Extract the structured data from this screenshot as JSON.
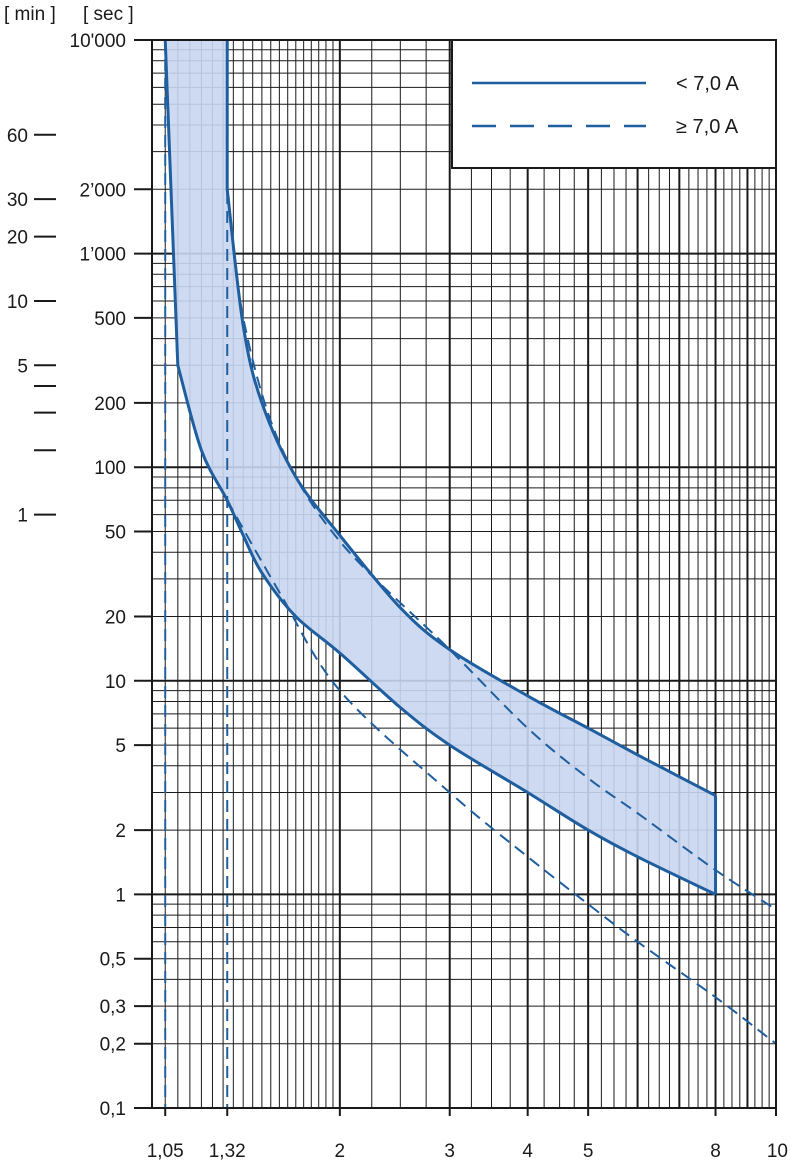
{
  "chart_data": {
    "type": "line",
    "x_scale": "log",
    "y_scale": "log",
    "xlim": [
      1,
      10
    ],
    "ylim": [
      0.1,
      10000
    ],
    "grid": true,
    "legend_position": "top-right",
    "axis_headers": {
      "minutes": "[ min ]",
      "seconds": "[ sec ]"
    },
    "x_tick_labels": [
      {
        "x": 1.05,
        "label": "1,05"
      },
      {
        "x": 1.32,
        "label": "1,32"
      },
      {
        "x": 2,
        "label": "2"
      },
      {
        "x": 3,
        "label": "3"
      },
      {
        "x": 4,
        "label": "4"
      },
      {
        "x": 5,
        "label": "5"
      },
      {
        "x": 8,
        "label": "8"
      },
      {
        "x": 10,
        "label": "10"
      }
    ],
    "y_tick_labels_sec": [
      {
        "y": 10000,
        "label": "10'000"
      },
      {
        "y": 2000,
        "label": "2’000"
      },
      {
        "y": 1000,
        "label": "1’000"
      },
      {
        "y": 500,
        "label": "500"
      },
      {
        "y": 200,
        "label": "200"
      },
      {
        "y": 100,
        "label": "100"
      },
      {
        "y": 50,
        "label": "50"
      },
      {
        "y": 20,
        "label": "20"
      },
      {
        "y": 10,
        "label": "10"
      },
      {
        "y": 5,
        "label": "5"
      },
      {
        "y": 2,
        "label": "2"
      },
      {
        "y": 1,
        "label": "1"
      },
      {
        "y": 0.5,
        "label": "0,5"
      },
      {
        "y": 0.3,
        "label": "0,3"
      },
      {
        "y": 0.2,
        "label": "0,2"
      },
      {
        "y": 0.1,
        "label": "0,1"
      }
    ],
    "y_tick_labels_min": [
      {
        "y": 3600,
        "label": "60"
      },
      {
        "y": 1800,
        "label": "30"
      },
      {
        "y": 1200,
        "label": "20"
      },
      {
        "y": 600,
        "label": "10"
      },
      {
        "y": 300,
        "label": "5"
      },
      {
        "y": 240,
        "label": ""
      },
      {
        "y": 180,
        "label": ""
      },
      {
        "y": 120,
        "label": ""
      },
      {
        "y": 60,
        "label": "1"
      }
    ],
    "series": [
      {
        "name": "< 7,0 A",
        "style": "solid",
        "band": [
          {
            "x": 1.05,
            "lower": 10000,
            "upper": 10000
          },
          {
            "x": 1.1,
            "lower": 300,
            "upper": 10000
          },
          {
            "x": 1.2,
            "lower": 120,
            "upper": 10000
          },
          {
            "x": 1.32,
            "lower": 70,
            "upper": 2000
          },
          {
            "x": 1.4,
            "lower": 48,
            "upper": 460
          },
          {
            "x": 1.5,
            "lower": 32,
            "upper": 200
          },
          {
            "x": 1.7,
            "lower": 20,
            "upper": 90
          },
          {
            "x": 2,
            "lower": 13.5,
            "upper": 48
          },
          {
            "x": 2.5,
            "lower": 7.5,
            "upper": 22
          },
          {
            "x": 3,
            "lower": 5,
            "upper": 14
          },
          {
            "x": 4,
            "lower": 3,
            "upper": 8.5
          },
          {
            "x": 5,
            "lower": 2,
            "upper": 6
          },
          {
            "x": 6,
            "lower": 1.5,
            "upper": 4.5
          },
          {
            "x": 8,
            "lower": 1,
            "upper": 2.9
          }
        ]
      },
      {
        "name": "≥ 7,0 A",
        "style": "dashed",
        "lower_curve": [
          {
            "x": 1.32,
            "y": 70
          },
          {
            "x": 1.6,
            "y": 26
          },
          {
            "x": 2,
            "y": 9
          },
          {
            "x": 3,
            "y": 3
          },
          {
            "x": 4,
            "y": 1.5
          },
          {
            "x": 5,
            "y": 0.9
          },
          {
            "x": 6,
            "y": 0.6
          },
          {
            "x": 8,
            "y": 0.33
          },
          {
            "x": 10,
            "y": 0.2
          }
        ],
        "upper_curve": [
          {
            "x": 1.32,
            "y": 2000
          },
          {
            "x": 1.4,
            "y": 500
          },
          {
            "x": 1.6,
            "y": 130
          },
          {
            "x": 2,
            "y": 45
          },
          {
            "x": 3,
            "y": 14
          },
          {
            "x": 4,
            "y": 6
          },
          {
            "x": 5,
            "y": 3.5
          },
          {
            "x": 6,
            "y": 2.4
          },
          {
            "x": 8,
            "y": 1.3
          },
          {
            "x": 10,
            "y": 0.85
          }
        ],
        "vertical_lines_x": [
          1.05,
          1.32
        ]
      }
    ],
    "legend": [
      {
        "label": "< 7,0 A",
        "style": "solid"
      },
      {
        "label": "≥ 7,0 A",
        "style": "dashed"
      }
    ],
    "colors": {
      "curve": "#1f5fa0",
      "band_fill": "#c9d6ef",
      "grid": "#1a1a1a"
    }
  }
}
